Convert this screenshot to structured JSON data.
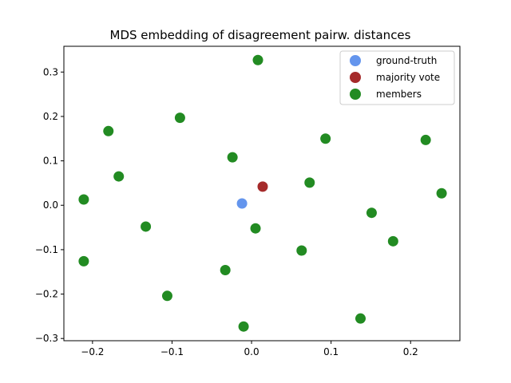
{
  "chart_data": {
    "type": "scatter",
    "title": "MDS embedding of disagreement pairw. distances",
    "xlabel": "",
    "ylabel": "",
    "xlim": [
      -0.236,
      0.262
    ],
    "ylim": [
      -0.305,
      0.358
    ],
    "xticks": [
      -0.2,
      -0.1,
      0.0,
      0.1,
      0.2
    ],
    "xtick_labels": [
      "−0.2",
      "−0.1",
      "0.0",
      "0.1",
      "0.2"
    ],
    "yticks": [
      -0.3,
      -0.2,
      -0.1,
      0.0,
      0.1,
      0.2,
      0.3
    ],
    "ytick_labels": [
      "−0.3",
      "−0.2",
      "−0.1",
      "0.0",
      "0.1",
      "0.2",
      "0.3"
    ],
    "grid": false,
    "legend_position": "top-right",
    "series": [
      {
        "name": "ground-truth",
        "color": "#6495ED",
        "points": [
          [
            -0.012,
            0.004
          ]
        ]
      },
      {
        "name": "majority vote",
        "color": "#A52A2A",
        "points": [
          [
            0.014,
            0.042
          ]
        ]
      },
      {
        "name": "members",
        "color": "#228B22",
        "points": [
          [
            0.008,
            0.327
          ],
          [
            -0.09,
            0.197
          ],
          [
            -0.18,
            0.167
          ],
          [
            0.219,
            0.147
          ],
          [
            0.093,
            0.15
          ],
          [
            -0.024,
            0.108
          ],
          [
            -0.167,
            0.065
          ],
          [
            0.073,
            0.051
          ],
          [
            -0.211,
            0.013
          ],
          [
            0.239,
            0.027
          ],
          [
            0.151,
            -0.017
          ],
          [
            -0.133,
            -0.048
          ],
          [
            0.005,
            -0.052
          ],
          [
            0.178,
            -0.081
          ],
          [
            0.063,
            -0.102
          ],
          [
            -0.211,
            -0.126
          ],
          [
            -0.033,
            -0.146
          ],
          [
            -0.106,
            -0.204
          ],
          [
            0.137,
            -0.255
          ],
          [
            -0.01,
            -0.273
          ]
        ]
      }
    ]
  }
}
